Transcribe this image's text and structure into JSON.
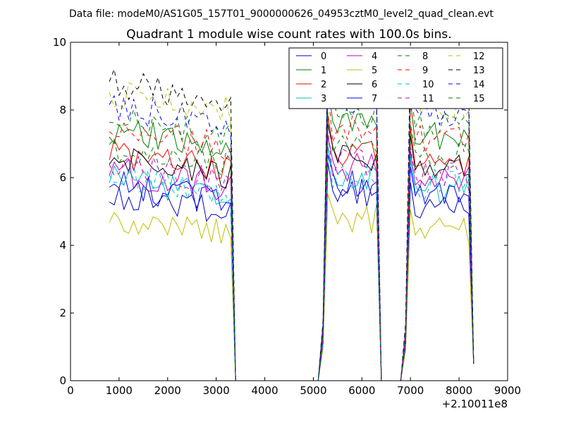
{
  "figure": {
    "suptitle": "Data file: modeM0/AS1G05_157T01_9000000626_04953cztM0_level2_quad_clean.evt"
  },
  "chart_data": {
    "type": "line",
    "title": "Quadrant 1 module wise count rates with 100.0s bins.",
    "xlabel": "",
    "ylabel": "",
    "x_offset_label": "+2.10011e8",
    "xlim": [
      0,
      9000
    ],
    "ylim": [
      0,
      10
    ],
    "xticks": [
      0,
      1000,
      2000,
      3000,
      4000,
      5000,
      6000,
      7000,
      8000,
      9000
    ],
    "yticks": [
      0,
      2,
      4,
      6,
      8,
      10
    ],
    "grid": false,
    "legend_position": "top-right",
    "legend_columns": 4,
    "segments": [
      {
        "x_start": 800,
        "x_end": 3300,
        "step": 100
      },
      {
        "x_start": 5200,
        "x_end": 6300,
        "step": 100
      },
      {
        "x_start": 6900,
        "x_end": 8200,
        "step": 100
      }
    ],
    "gaps": [
      {
        "from": 3400,
        "to": 5100
      },
      {
        "from": 6400,
        "to": 6800
      }
    ],
    "end_point": {
      "x": 8300,
      "y": 0.5
    },
    "series": [
      {
        "name": "0",
        "color": "#0000bf",
        "dash": "solid",
        "levels": [
          5.0,
          5.6,
          5.1
        ]
      },
      {
        "name": "1",
        "color": "#007f00",
        "dash": "solid",
        "levels": [
          6.9,
          7.6,
          7.2
        ]
      },
      {
        "name": "2",
        "color": "#ff0000",
        "dash": "solid",
        "levels": [
          6.2,
          6.8,
          6.5
        ]
      },
      {
        "name": "3",
        "color": "#00bfbf",
        "dash": "solid",
        "levels": [
          5.5,
          6.0,
          5.7
        ]
      },
      {
        "name": "4",
        "color": "#bf00bf",
        "dash": "solid",
        "levels": [
          5.7,
          6.3,
          5.9
        ]
      },
      {
        "name": "5",
        "color": "#bfbf00",
        "dash": "solid",
        "levels": [
          4.3,
          4.8,
          4.4
        ]
      },
      {
        "name": "6",
        "color": "#000000",
        "dash": "solid",
        "levels": [
          6.0,
          6.6,
          6.3
        ]
      },
      {
        "name": "7",
        "color": "#0000ff",
        "dash": "solid",
        "levels": [
          5.3,
          5.8,
          5.5
        ]
      },
      {
        "name": "8",
        "color": "#007f00",
        "dash": "dashed",
        "levels": [
          7.2,
          7.9,
          7.5
        ]
      },
      {
        "name": "9",
        "color": "#ff0000",
        "dash": "dashed",
        "levels": [
          6.9,
          7.5,
          7.1
        ]
      },
      {
        "name": "10",
        "color": "#00bfbf",
        "dash": "dashed",
        "levels": [
          5.6,
          6.1,
          5.8
        ]
      },
      {
        "name": "11",
        "color": "#bf00bf",
        "dash": "dashed",
        "levels": [
          5.9,
          6.4,
          6.0
        ]
      },
      {
        "name": "12",
        "color": "#bfbf00",
        "dash": "dashed",
        "levels": [
          8.0,
          8.5,
          8.2
        ]
      },
      {
        "name": "13",
        "color": "#000000",
        "dash": "dashed",
        "levels": [
          8.3,
          8.9,
          8.5
        ]
      },
      {
        "name": "14",
        "color": "#0000ff",
        "dash": "dashed",
        "levels": [
          7.6,
          8.3,
          7.9
        ]
      },
      {
        "name": "15",
        "color": "#007f00",
        "dash": "dashed",
        "levels": [
          6.4,
          6.9,
          6.6
        ]
      }
    ]
  }
}
